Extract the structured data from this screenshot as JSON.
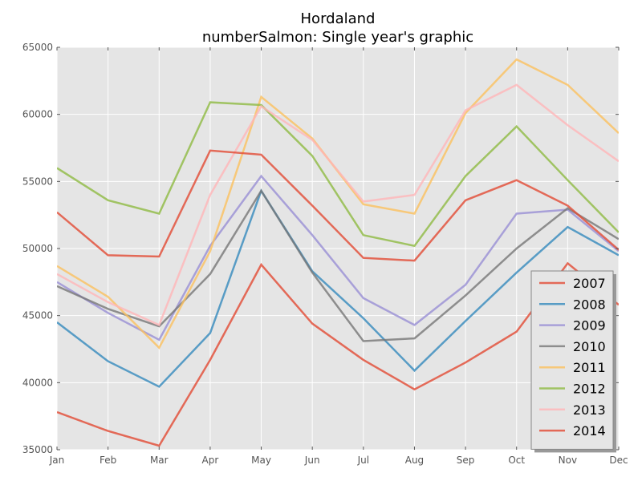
{
  "chart_data": {
    "type": "line",
    "title": "Hordaland",
    "subtitle": "numberSalmon: Single year's graphic",
    "xlabel": "",
    "ylabel": "",
    "categories": [
      "Jan",
      "Feb",
      "Mar",
      "Apr",
      "May",
      "Jun",
      "Jul",
      "Aug",
      "Sep",
      "Oct",
      "Nov",
      "Dec"
    ],
    "ylim": [
      35000,
      65000
    ],
    "yticks": [
      "35000",
      "40000",
      "45000",
      "50000",
      "55000",
      "60000",
      "65000"
    ],
    "grid": true,
    "legend_position": "lower-right",
    "series": [
      {
        "name": "2007",
        "color": "#E24A33",
        "values": [
          37800,
          36400,
          35300,
          41700,
          48800,
          44400,
          41700,
          39500,
          41500,
          43800,
          48900,
          45800
        ]
      },
      {
        "name": "2008",
        "color": "#348ABD",
        "values": [
          44500,
          41600,
          39700,
          43700,
          54300,
          48300,
          44800,
          40900,
          44600,
          48200,
          51600,
          49500
        ]
      },
      {
        "name": "2009",
        "color": "#988ED5",
        "values": [
          47500,
          45200,
          43200,
          50200,
          55400,
          51000,
          46300,
          44300,
          47300,
          52600,
          52900,
          49800
        ]
      },
      {
        "name": "2010",
        "color": "#777777",
        "values": [
          47200,
          45500,
          44200,
          48100,
          54300,
          48200,
          43100,
          43300,
          46500,
          50000,
          53000,
          50700
        ]
      },
      {
        "name": "2011",
        "color": "#FBC15E",
        "values": [
          48700,
          46400,
          42600,
          49800,
          61300,
          58200,
          53300,
          52600,
          60100,
          64100,
          62200,
          58600
        ]
      },
      {
        "name": "2012",
        "color": "#8EBA42",
        "values": [
          56000,
          53600,
          52600,
          60900,
          60700,
          56900,
          51000,
          50200,
          55400,
          59100,
          55100,
          51200
        ]
      },
      {
        "name": "2013",
        "color": "#FFB5B8",
        "values": [
          48100,
          46000,
          44300,
          54000,
          60600,
          58100,
          53500,
          54000,
          60300,
          62200,
          59200,
          56500
        ]
      },
      {
        "name": "2014",
        "color": "#E24A33",
        "values": [
          52700,
          49500,
          49400,
          57300,
          57000,
          53200,
          49300,
          49100,
          53600,
          55100,
          53200,
          49900
        ]
      }
    ]
  }
}
